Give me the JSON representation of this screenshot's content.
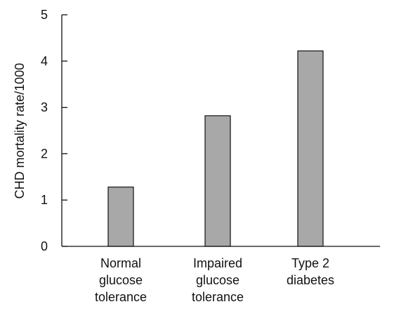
{
  "chart_data": {
    "type": "bar",
    "categories": [
      [
        "Normal",
        "glucose",
        "tolerance"
      ],
      [
        "Impaired",
        "glucose",
        "tolerance"
      ],
      [
        "Type 2",
        "diabetes"
      ]
    ],
    "values": [
      1.28,
      2.82,
      4.22
    ],
    "ylabel": "CHD mortality rate/1000",
    "xlabel": "",
    "ylim": [
      0,
      5
    ],
    "yticks": [
      "0",
      "1",
      "2",
      "3",
      "4",
      "5"
    ],
    "grid": false,
    "legend": "none",
    "bar_color": "#a8a8a8"
  }
}
